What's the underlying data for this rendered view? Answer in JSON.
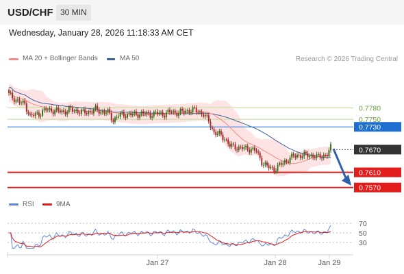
{
  "header": {
    "symbol": "USD/CHF",
    "timeframe": "30 MIN",
    "datetime": "Wednesday, January 28, 2026 11:18:33 AM CET"
  },
  "legend": {
    "ma20": "MA 20 + Bollinger Bands",
    "ma50": "MA 50",
    "rsi": "RSI",
    "ma9": "9MA"
  },
  "credit": "Research © 2026 Trading Central",
  "colors": {
    "ma20": "#f28b82",
    "ma50": "#3b5f96",
    "band_fill": "#fde3e3",
    "resistance": "#b9dd95",
    "pivot": "#1f6fd1",
    "support": "#e21b1b",
    "last": "#333333",
    "candle_up": "#3f6f1e",
    "candle_down": "#a52a2a",
    "rsi": "#5b86d6",
    "rsi_ma": "#e21b1b",
    "arrow": "#2f5ea8"
  },
  "chart_data": [
    {
      "type": "candlestick",
      "x_ticks": [
        "Jan 27",
        "Jan 28",
        "Jan 29"
      ],
      "y_range": [
        0.7555,
        0.7875
      ],
      "levels": [
        {
          "value": 0.778,
          "label": "0.7780",
          "kind": "resistance"
        },
        {
          "value": 0.775,
          "label": "0.7750",
          "kind": "resistance"
        },
        {
          "value": 0.773,
          "label": "0.7730",
          "kind": "pivot"
        },
        {
          "value": 0.767,
          "label": "0.7670",
          "kind": "last"
        },
        {
          "value": 0.761,
          "label": "0.7610",
          "kind": "support"
        },
        {
          "value": 0.757,
          "label": "0.7570",
          "kind": "support"
        }
      ],
      "close_key_points": [
        [
          0,
          0.7815
        ],
        [
          6,
          0.7795
        ],
        [
          9,
          0.779
        ],
        [
          12,
          0.7758
        ],
        [
          17,
          0.7765
        ],
        [
          21,
          0.7775
        ],
        [
          26,
          0.7773
        ],
        [
          31,
          0.777
        ],
        [
          35,
          0.7775
        ],
        [
          39,
          0.7772
        ],
        [
          42,
          0.7768
        ],
        [
          46,
          0.777
        ],
        [
          49,
          0.7776
        ],
        [
          52,
          0.777
        ],
        [
          56,
          0.7768
        ],
        [
          59,
          0.7748
        ],
        [
          62,
          0.776
        ],
        [
          66,
          0.7763
        ],
        [
          71,
          0.7763
        ],
        [
          75,
          0.7765
        ],
        [
          80,
          0.7763
        ],
        [
          84,
          0.7766
        ],
        [
          88,
          0.7764
        ],
        [
          92,
          0.777
        ],
        [
          96,
          0.7767
        ],
        [
          100,
          0.7772
        ],
        [
          104,
          0.7774
        ],
        [
          107,
          0.7772
        ],
        [
          110,
          0.7763
        ],
        [
          113,
          0.7745
        ],
        [
          116,
          0.7715
        ],
        [
          119,
          0.771
        ],
        [
          122,
          0.77
        ],
        [
          125,
          0.768
        ],
        [
          128,
          0.7677
        ],
        [
          133,
          0.7673
        ],
        [
          137,
          0.7672
        ],
        [
          140,
          0.7665
        ],
        [
          143,
          0.7638
        ],
        [
          146,
          0.7625
        ],
        [
          150,
          0.7618
        ],
        [
          153,
          0.7628
        ],
        [
          156,
          0.7638
        ],
        [
          160,
          0.765
        ],
        [
          163,
          0.7655
        ],
        [
          167,
          0.7655
        ],
        [
          171,
          0.7655
        ],
        [
          175,
          0.765
        ],
        [
          178,
          0.7655
        ],
        [
          180,
          0.7657
        ],
        [
          182,
          0.7675
        ]
      ],
      "ma20_range": [
        0.765,
        0.785
      ],
      "ma50_range": [
        0.769,
        0.783
      ]
    },
    {
      "type": "line",
      "name": "RSI",
      "y_ticks": [
        70,
        50,
        30
      ],
      "y_range": [
        10,
        90
      ]
    }
  ]
}
